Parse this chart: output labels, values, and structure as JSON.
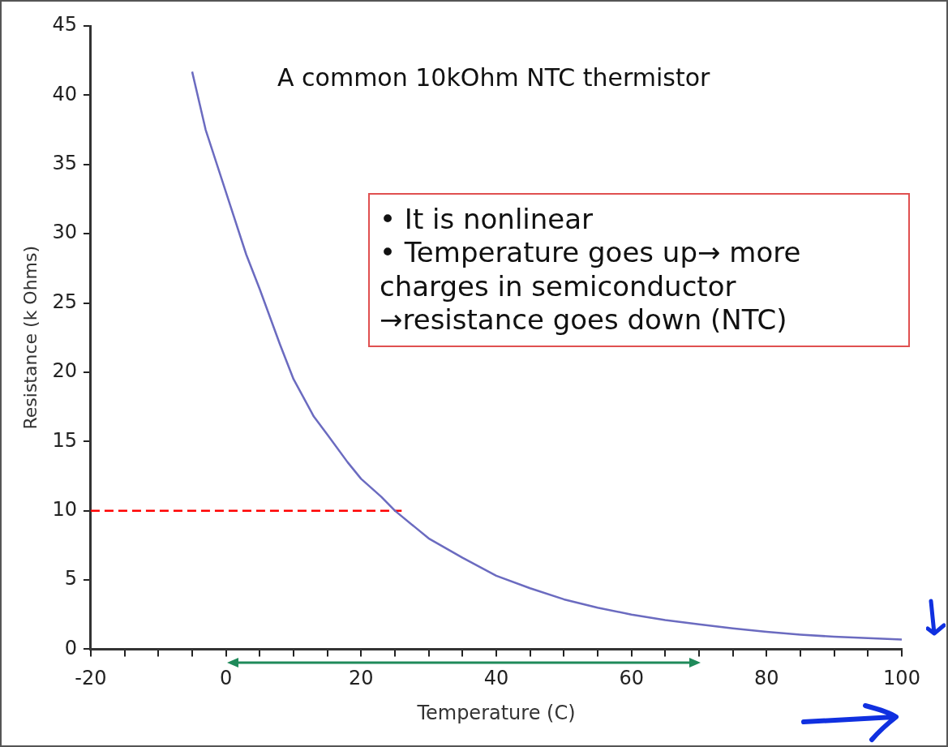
{
  "chart_data": {
    "type": "line",
    "title": "A common 10kOhm NTC thermistor",
    "xlabel": "Temperature (C)",
    "ylabel": "Resistance (k Ohms)",
    "annotations": [
      "• It is nonlinear",
      "• Temperature goes up→ more charges in semiconductor",
      "→resistance goes down (NTC)"
    ],
    "series": [
      {
        "color": "#6b6bc0",
        "x": [
          -5,
          -3,
          0,
          3,
          5,
          8,
          10,
          13,
          15,
          18,
          20,
          23,
          25,
          28,
          30,
          35,
          40,
          45,
          50,
          55,
          60,
          65,
          70,
          75,
          80,
          85,
          90,
          95,
          100
        ],
        "values": [
          41.7,
          37.5,
          33,
          28.5,
          26,
          22,
          19.5,
          16.8,
          15.5,
          13.5,
          12.3,
          11,
          10,
          8.8,
          8,
          6.6,
          5.3,
          4.4,
          3.6,
          3,
          2.5,
          2.1,
          1.8,
          1.5,
          1.25,
          1.05,
          0.9,
          0.8,
          0.7
        ]
      },
      {
        "color": "#ff0000",
        "line_style": "dashed",
        "x": [
          -20,
          26
        ],
        "values": [
          10,
          10
        ]
      }
    ],
    "xlim": [
      -20,
      100
    ],
    "xticks": [
      -20,
      {
        "value": -15,
        "label": null
      },
      {
        "value": -10,
        "label": null
      },
      {
        "value": -5,
        "label": null
      },
      0,
      {
        "value": 5,
        "label": null
      },
      {
        "value": 10,
        "label": null
      },
      {
        "value": 15,
        "label": null
      },
      20,
      {
        "value": 25,
        "label": null
      },
      {
        "value": 30,
        "label": null
      },
      {
        "value": 35,
        "label": null
      },
      40,
      {
        "value": 45,
        "label": null
      },
      {
        "value": 50,
        "label": null
      },
      {
        "value": 55,
        "label": null
      },
      60,
      {
        "value": 65,
        "label": null
      },
      {
        "value": 70,
        "label": null
      },
      {
        "value": 75,
        "label": null
      },
      80,
      {
        "value": 85,
        "label": null
      },
      {
        "value": 90,
        "label": null
      },
      {
        "value": 95,
        "label": null
      },
      100
    ],
    "ylim": [
      0,
      45
    ],
    "yticks": [
      0,
      5,
      10,
      15,
      20,
      25,
      30,
      35,
      40,
      45
    ],
    "grid": false,
    "legend": false,
    "marker": "none",
    "line_style": "solid"
  }
}
